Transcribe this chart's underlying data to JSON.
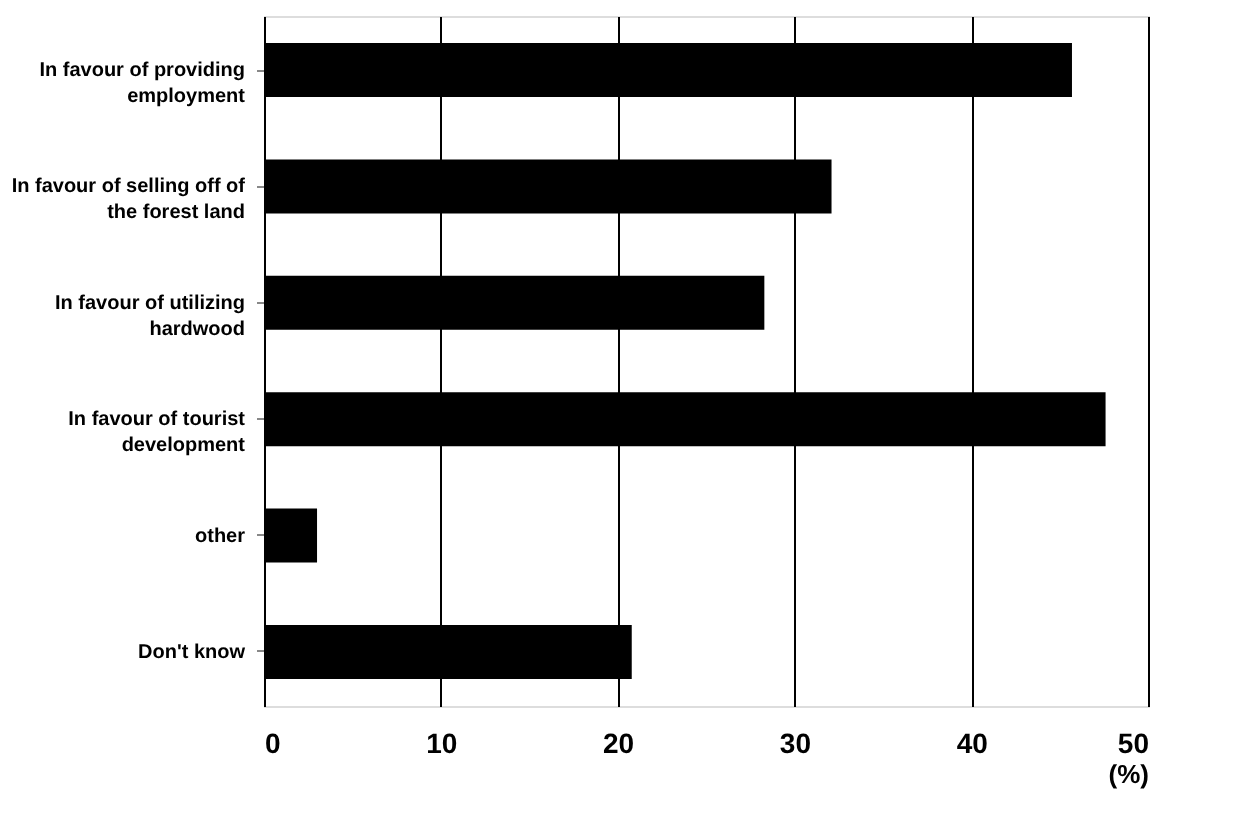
{
  "chart_data": {
    "type": "bar",
    "orientation": "horizontal",
    "categories": [
      "In favour of providing employment",
      "In favour of selling off of the forest land",
      "In favour of utilizing hardwood",
      "In favour of tourist development",
      "other",
      "Don't know"
    ],
    "values": [
      45.7,
      32.1,
      28.3,
      47.6,
      3.0,
      20.8
    ],
    "color": "#000000",
    "xlim": [
      0,
      50
    ],
    "xticks": [
      0,
      10,
      20,
      30,
      40,
      50
    ],
    "xlabel": "(%)",
    "grid": "x"
  }
}
